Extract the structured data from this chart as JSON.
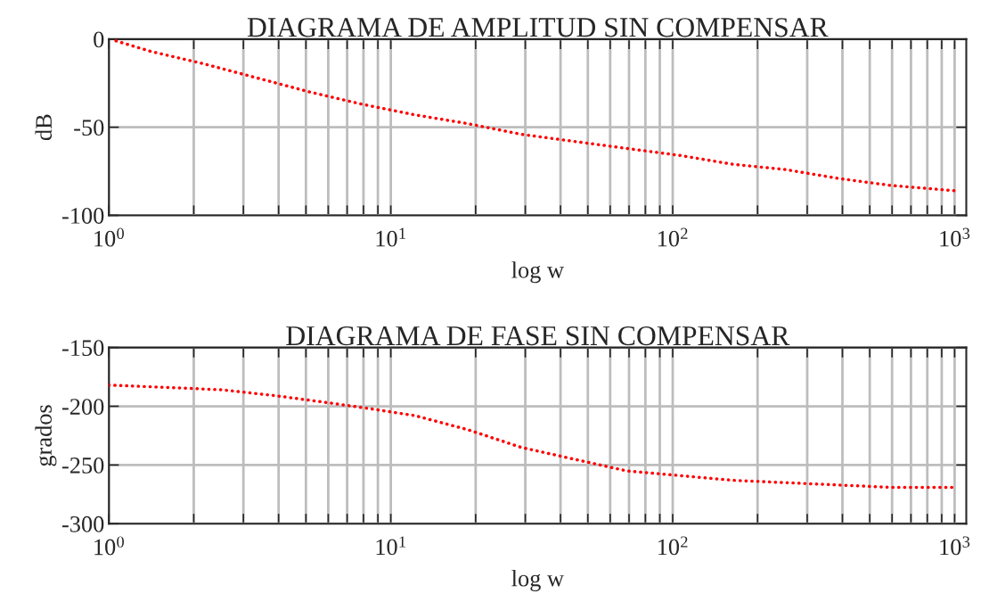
{
  "chart_data": [
    {
      "type": "line",
      "title": "DIAGRAMA DE AMPLITUD SIN COMPENSAR",
      "xlabel": "log w",
      "ylabel": "dB",
      "log": "x",
      "grid": true,
      "line_style": "dotted",
      "xlim": [
        1,
        1100
      ],
      "ylim": [
        -100,
        0
      ],
      "yticks": [
        0,
        -50,
        -100
      ],
      "xticks": [
        {
          "value": 1,
          "label": "10$^{0}$"
        },
        {
          "value": 2,
          "label": null
        },
        {
          "value": 3,
          "label": null
        },
        {
          "value": 4,
          "label": null
        },
        {
          "value": 5,
          "label": null
        },
        {
          "value": 6,
          "label": null
        },
        {
          "value": 7,
          "label": null
        },
        {
          "value": 8,
          "label": null
        },
        {
          "value": 9,
          "label": null
        },
        {
          "value": 10,
          "label": "10$^{1}$"
        },
        {
          "value": 20,
          "label": null
        },
        {
          "value": 30,
          "label": null
        },
        {
          "value": 40,
          "label": null
        },
        {
          "value": 50,
          "label": null
        },
        {
          "value": 60,
          "label": null
        },
        {
          "value": 70,
          "label": null
        },
        {
          "value": 80,
          "label": null
        },
        {
          "value": 90,
          "label": null
        },
        {
          "value": 100,
          "label": "10$^{2}$"
        },
        {
          "value": 200,
          "label": null
        },
        {
          "value": 300,
          "label": null
        },
        {
          "value": 400,
          "label": null
        },
        {
          "value": 500,
          "label": null
        },
        {
          "value": 600,
          "label": null
        },
        {
          "value": 700,
          "label": null
        },
        {
          "value": 800,
          "label": null
        },
        {
          "value": 900,
          "label": null
        },
        {
          "value": 1000,
          "label": "10$^{3}$"
        }
      ],
      "series": [
        {
          "color": "#ff0000",
          "x": [
            1.06,
            1.41,
            2.17,
            3.35,
            5.16,
            7.94,
            12.2,
            18.8,
            29,
            44.6,
            68.6,
            106,
            163,
            251,
            385,
            593,
            1000
          ],
          "values": [
            -1,
            -7,
            -14,
            -22,
            -30,
            -37,
            -43,
            -48,
            -54,
            -58,
            -62,
            -66,
            -71,
            -74,
            -79,
            -83,
            -86
          ]
        }
      ]
    },
    {
      "type": "line",
      "title": "DIAGRAMA DE FASE SIN COMPENSAR",
      "xlabel": "log w",
      "ylabel": "grados",
      "log": "x",
      "grid": true,
      "line_style": "dotted",
      "xlim": [
        1,
        1100
      ],
      "ylim": [
        -300,
        -150
      ],
      "yticks": [
        -150,
        -200,
        -250,
        -300
      ],
      "xticks": [
        {
          "value": 1,
          "label": "10$^{0}$"
        },
        {
          "value": 2,
          "label": null
        },
        {
          "value": 3,
          "label": null
        },
        {
          "value": 4,
          "label": null
        },
        {
          "value": 5,
          "label": null
        },
        {
          "value": 6,
          "label": null
        },
        {
          "value": 7,
          "label": null
        },
        {
          "value": 8,
          "label": null
        },
        {
          "value": 9,
          "label": null
        },
        {
          "value": 10,
          "label": "10$^{1}$"
        },
        {
          "value": 20,
          "label": null
        },
        {
          "value": 30,
          "label": null
        },
        {
          "value": 40,
          "label": null
        },
        {
          "value": 50,
          "label": null
        },
        {
          "value": 60,
          "label": null
        },
        {
          "value": 70,
          "label": null
        },
        {
          "value": 80,
          "label": null
        },
        {
          "value": 90,
          "label": null
        },
        {
          "value": 100,
          "label": "10$^{2}$"
        },
        {
          "value": 200,
          "label": null
        },
        {
          "value": 300,
          "label": null
        },
        {
          "value": 400,
          "label": null
        },
        {
          "value": 500,
          "label": null
        },
        {
          "value": 600,
          "label": null
        },
        {
          "value": 700,
          "label": null
        },
        {
          "value": 800,
          "label": null
        },
        {
          "value": 900,
          "label": null
        },
        {
          "value": 1000,
          "label": "10$^{3}$"
        }
      ],
      "series": [
        {
          "color": "#ff0000",
          "x": [
            1,
            1.63,
            2.52,
            3.9,
            6,
            8.4,
            12.2,
            18.8,
            29,
            44.6,
            68.6,
            106,
            163,
            251,
            385,
            593,
            1000
          ],
          "values": [
            -182,
            -184,
            -186,
            -191,
            -197,
            -202,
            -208,
            -220,
            -235,
            -245,
            -255,
            -259,
            -263,
            -265,
            -267,
            -269,
            -269
          ]
        }
      ]
    }
  ]
}
